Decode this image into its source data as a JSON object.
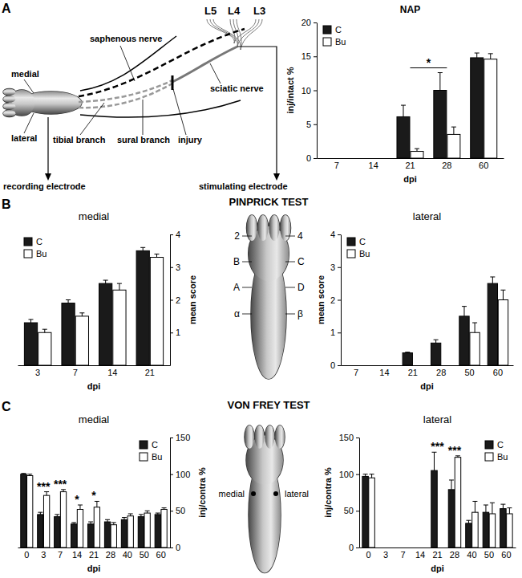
{
  "chart_data": [
    {
      "type": "bar",
      "title": "NAP",
      "x_label": "dpi",
      "y_label": "inj/intact %",
      "categories": [
        "7",
        "14",
        "21",
        "28",
        "60"
      ],
      "series": [
        {
          "name": "C",
          "color": "#1a1a1a",
          "values": [
            0,
            0,
            6.1,
            10,
            14.8
          ],
          "errors": [
            0,
            0,
            1.7,
            2.6,
            0.7
          ]
        },
        {
          "name": "Bu",
          "color": "#ffffff",
          "values": [
            0,
            0,
            1.0,
            3.5,
            14.6
          ],
          "errors": [
            0,
            0,
            0.4,
            1.1,
            0.8
          ]
        }
      ],
      "ylim": [
        0,
        20
      ],
      "yticks": [
        0,
        5,
        10,
        15,
        20
      ],
      "legend": "upper left",
      "annotations": [
        {
          "text": "*",
          "categories": [
            "21",
            "28"
          ]
        }
      ]
    },
    {
      "type": "bar",
      "title": "medial",
      "x_label": "dpi",
      "y_label": "mean score",
      "categories": [
        "3",
        "7",
        "14",
        "21"
      ],
      "series": [
        {
          "name": "C",
          "color": "#1a1a1a",
          "values": [
            1.3,
            1.9,
            2.5,
            3.5
          ],
          "errors": [
            0.1,
            0.1,
            0.1,
            0.1
          ]
        },
        {
          "name": "Bu",
          "color": "#ffffff",
          "values": [
            1.0,
            1.5,
            2.3,
            3.3
          ],
          "errors": [
            0.1,
            0.1,
            0.2,
            0.1
          ]
        }
      ],
      "ylim": [
        0,
        4
      ],
      "yticks": [
        1,
        2,
        3,
        4
      ],
      "legend": "upper left"
    },
    {
      "type": "bar",
      "title": "lateral",
      "x_label": "dpi",
      "y_label": "mean score",
      "categories": [
        "7",
        "14",
        "21",
        "28",
        "50",
        "60"
      ],
      "series": [
        {
          "name": "C",
          "color": "#1a1a1a",
          "values": [
            0,
            0,
            0.38,
            0.68,
            1.5,
            2.5
          ],
          "errors": [
            0,
            0,
            0.02,
            0.1,
            0.3,
            0.2
          ]
        },
        {
          "name": "Bu",
          "color": "#ffffff",
          "values": [
            0,
            0,
            0,
            0,
            1.0,
            2.0
          ],
          "errors": [
            0,
            0,
            0,
            0,
            0.3,
            0.3
          ]
        }
      ],
      "ylim": [
        0,
        4
      ],
      "yticks": [
        0,
        1,
        2,
        3,
        4
      ],
      "legend": "upper left"
    },
    {
      "type": "bar",
      "title": "medial",
      "x_label": "dpi",
      "y_label": "inj/contra %",
      "categories": [
        "0",
        "3",
        "7",
        "14",
        "21",
        "28",
        "40",
        "50",
        "60"
      ],
      "series": [
        {
          "name": "C",
          "color": "#1a1a1a",
          "values": [
            100,
            45,
            42,
            32,
            32,
            35,
            38,
            42,
            45
          ],
          "errors": [
            1,
            3,
            3,
            2,
            3,
            3,
            3,
            3,
            2
          ]
        },
        {
          "name": "Bu",
          "color": "#ffffff",
          "values": [
            98,
            71,
            76,
            52,
            55,
            31,
            43,
            47,
            52
          ],
          "errors": [
            2,
            5,
            3,
            6,
            8,
            3,
            3,
            3,
            2
          ]
        }
      ],
      "ylim": [
        0,
        150
      ],
      "yticks": [
        0,
        50,
        100,
        150
      ],
      "legend": "upper right",
      "annotations": [
        {
          "text": "***",
          "categories": [
            "3"
          ]
        },
        {
          "text": "***",
          "categories": [
            "7"
          ]
        },
        {
          "text": "*",
          "categories": [
            "14"
          ]
        },
        {
          "text": "*",
          "categories": [
            "21"
          ]
        }
      ]
    },
    {
      "type": "bar",
      "title": "lateral",
      "x_label": "dpi",
      "y_label": "inj/contra %",
      "categories": [
        "0",
        "3",
        "7",
        "14",
        "21",
        "28",
        "40",
        "50",
        "60"
      ],
      "series": [
        {
          "name": "C",
          "color": "#1a1a1a",
          "values": [
            97,
            0,
            0,
            0,
            105,
            79,
            33,
            48,
            53
          ],
          "errors": [
            3,
            0,
            0,
            0,
            25,
            13,
            4,
            10,
            6
          ]
        },
        {
          "name": "Bu",
          "color": "#ffffff",
          "values": [
            95,
            0,
            0,
            0,
            0,
            123,
            48,
            46,
            46
          ],
          "errors": [
            5,
            0,
            0,
            0,
            0,
            2,
            15,
            15,
            8
          ]
        }
      ],
      "ylim": [
        0,
        150
      ],
      "yticks": [
        0,
        50,
        100,
        150
      ],
      "legend": "upper right",
      "annotations": [
        {
          "text": "***",
          "categories": [
            "21"
          ]
        },
        {
          "text": "***",
          "categories": [
            "28"
          ]
        }
      ]
    }
  ],
  "figure": {
    "panel_labels": [
      "A",
      "B",
      "C"
    ],
    "section_titles": [
      "PINPRICK TEST",
      "VON FREY TEST"
    ],
    "nerve_diagram": {
      "roots": [
        "L5",
        "L4",
        "L3"
      ],
      "labels": [
        "medial",
        "lateral",
        "saphenous nerve",
        "tibial branch",
        "sural branch",
        "sciatic nerve",
        "injury",
        "recording electrode",
        "stimulating electrode"
      ]
    },
    "paw_b": {
      "left": [
        "2",
        "B",
        "A",
        "α"
      ],
      "right": [
        "4",
        "C",
        "D",
        "β"
      ]
    },
    "paw_c": [
      "medial",
      "lateral"
    ]
  }
}
